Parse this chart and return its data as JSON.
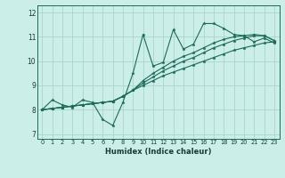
{
  "title": "",
  "xlabel": "Humidex (Indice chaleur)",
  "ylabel": "",
  "bg_color": "#cceee8",
  "line_color": "#1a6b5a",
  "grid_color": "#aad4cc",
  "xlim": [
    -0.5,
    23.5
  ],
  "ylim": [
    6.8,
    12.3
  ],
  "xticks": [
    0,
    1,
    2,
    3,
    4,
    5,
    6,
    7,
    8,
    9,
    10,
    11,
    12,
    13,
    14,
    15,
    16,
    17,
    18,
    19,
    20,
    21,
    22,
    23
  ],
  "yticks": [
    7,
    8,
    9,
    10,
    11,
    12
  ],
  "series": [
    [
      8.0,
      8.4,
      8.2,
      8.1,
      8.4,
      8.3,
      7.6,
      7.35,
      8.3,
      9.5,
      11.1,
      9.8,
      9.95,
      11.3,
      10.5,
      10.7,
      11.55,
      11.55,
      11.35,
      11.1,
      11.05,
      10.8,
      10.95,
      10.75
    ],
    [
      8.0,
      8.05,
      8.1,
      8.15,
      8.2,
      8.25,
      8.3,
      8.35,
      8.55,
      8.8,
      9.0,
      9.2,
      9.4,
      9.55,
      9.7,
      9.85,
      10.0,
      10.15,
      10.3,
      10.45,
      10.55,
      10.65,
      10.75,
      10.8
    ],
    [
      8.0,
      8.05,
      8.1,
      8.15,
      8.2,
      8.25,
      8.3,
      8.35,
      8.55,
      8.8,
      9.1,
      9.35,
      9.6,
      9.8,
      10.0,
      10.15,
      10.35,
      10.55,
      10.7,
      10.85,
      10.95,
      11.05,
      11.05,
      10.85
    ],
    [
      8.0,
      8.05,
      8.1,
      8.15,
      8.2,
      8.25,
      8.3,
      8.35,
      8.55,
      8.8,
      9.2,
      9.5,
      9.75,
      10.0,
      10.2,
      10.35,
      10.55,
      10.75,
      10.9,
      11.0,
      11.05,
      11.1,
      11.05,
      10.85
    ]
  ]
}
